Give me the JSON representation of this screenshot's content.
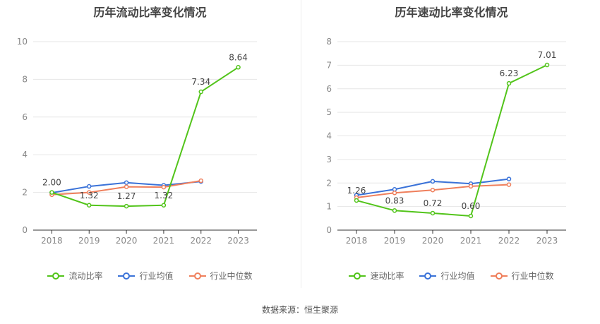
{
  "charts": [
    {
      "title": "历年流动比率变化情况"
    },
    {
      "title": "历年速动比率变化情况"
    }
  ],
  "source": "数据来源：恒生聚源",
  "chart_data": [
    {
      "type": "line",
      "title": "历年流动比率变化情况",
      "categories": [
        "2018",
        "2019",
        "2020",
        "2021",
        "2022",
        "2023"
      ],
      "ylim": [
        0,
        10
      ],
      "yticks": [
        0,
        2,
        4,
        6,
        8,
        10
      ],
      "grid": true,
      "legend_position": "bottom",
      "series": [
        {
          "name": "流动比率",
          "color": "#52c41a",
          "values": [
            2.0,
            1.32,
            1.27,
            1.32,
            7.34,
            8.64
          ],
          "labels": [
            "2.00",
            "1.32",
            "1.27",
            "1.32",
            "7.34",
            "8.64"
          ]
        },
        {
          "name": "行业均值",
          "color": "#3a72d8",
          "values": [
            1.98,
            2.32,
            2.52,
            2.38,
            2.58,
            null
          ]
        },
        {
          "name": "行业中位数",
          "color": "#ef7f5c",
          "values": [
            1.88,
            2.0,
            2.3,
            2.28,
            2.62,
            null
          ]
        }
      ]
    },
    {
      "type": "line",
      "title": "历年速动比率变化情况",
      "categories": [
        "2018",
        "2019",
        "2020",
        "2021",
        "2022",
        "2023"
      ],
      "ylim": [
        0,
        8
      ],
      "yticks": [
        0,
        1,
        2,
        3,
        4,
        5,
        6,
        7,
        8
      ],
      "grid": true,
      "legend_position": "bottom",
      "series": [
        {
          "name": "速动比率",
          "color": "#52c41a",
          "values": [
            1.26,
            0.83,
            0.72,
            0.6,
            6.23,
            7.01
          ],
          "labels": [
            "1.26",
            "0.83",
            "0.72",
            "0.60",
            "6.23",
            "7.01"
          ]
        },
        {
          "name": "行业均值",
          "color": "#3a72d8",
          "values": [
            1.48,
            1.73,
            2.07,
            1.97,
            2.17,
            null
          ]
        },
        {
          "name": "行业中位数",
          "color": "#ef7f5c",
          "values": [
            1.38,
            1.58,
            1.7,
            1.86,
            1.93,
            null
          ]
        }
      ]
    }
  ]
}
